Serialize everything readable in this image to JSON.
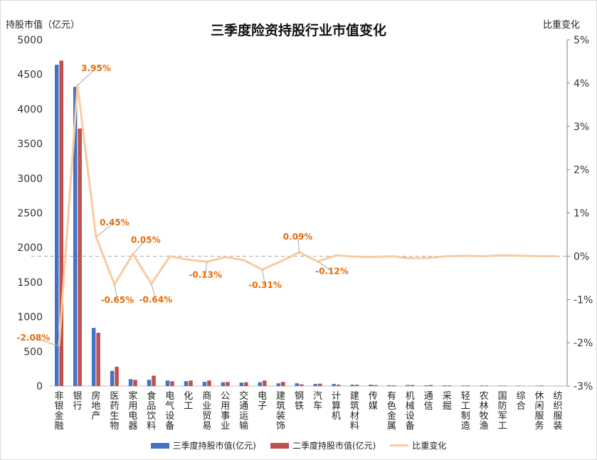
{
  "chart_data": {
    "type": "bar",
    "title": "三季度险资持股行业市值变化",
    "y_left_label": "持股市值（亿元）",
    "y_right_label": "比重变化",
    "ylim_left": [
      0,
      5000
    ],
    "y_left_ticks": [
      0,
      500,
      1000,
      1500,
      2000,
      2500,
      3000,
      3500,
      4000,
      4500,
      5000
    ],
    "ylim_right": [
      -3,
      5
    ],
    "y_right_ticks": [
      "-3%",
      "-2%",
      "-1%",
      "0%",
      "1%",
      "2%",
      "3%",
      "4%",
      "5%"
    ],
    "categories": [
      "非银金融",
      "银行",
      "房地产",
      "医药生物",
      "家用电器",
      "食品饮料",
      "电气设备",
      "化工",
      "商业贸易",
      "公用事业",
      "交通运输",
      "电子",
      "建筑装饰",
      "钢铁",
      "汽车",
      "计算机",
      "建筑材料",
      "传媒",
      "有色金属",
      "机械设备",
      "通信",
      "采掘",
      "轻工制造",
      "农林牧渔",
      "国防军工",
      "综合",
      "休闲服务",
      "纺织服装"
    ],
    "series": [
      {
        "name": "三季度持股市值(亿元)",
        "type": "bar",
        "color": "#4472c4",
        "values": [
          4640,
          4320,
          840,
          220,
          100,
          90,
          80,
          70,
          60,
          55,
          50,
          55,
          40,
          40,
          30,
          30,
          20,
          20,
          12,
          15,
          10,
          10,
          8,
          8,
          6,
          6,
          6,
          3
        ]
      },
      {
        "name": "二季度持股市值(亿元)",
        "type": "bar",
        "color": "#c0504d",
        "values": [
          4700,
          3720,
          770,
          280,
          90,
          150,
          70,
          80,
          80,
          60,
          55,
          80,
          60,
          25,
          35,
          20,
          20,
          15,
          10,
          15,
          15,
          10,
          8,
          8,
          6,
          3,
          8,
          3
        ]
      },
      {
        "name": "比重变化",
        "type": "line",
        "color": "#f8cba0",
        "values": [
          -2.08,
          3.95,
          0.45,
          -0.65,
          0.05,
          -0.64,
          0.0,
          -0.08,
          -0.13,
          -0.02,
          -0.09,
          -0.31,
          -0.12,
          0.09,
          -0.12,
          0.02,
          -0.01,
          -0.02,
          0.0,
          -0.05,
          -0.04,
          0.0,
          0.01,
          0.0,
          0.02,
          0.01,
          0.0,
          0.0
        ]
      }
    ],
    "annotations": [
      {
        "index": 0,
        "label": "-2.08%"
      },
      {
        "index": 1,
        "label": "3.95%"
      },
      {
        "index": 2,
        "label": "0.45%"
      },
      {
        "index": 3,
        "label": "-0.65%"
      },
      {
        "index": 4,
        "label": "0.05%"
      },
      {
        "index": 5,
        "label": "-0.64%"
      },
      {
        "index": 8,
        "label": "-0.13%"
      },
      {
        "index": 11,
        "label": "-0.31%"
      },
      {
        "index": 13,
        "label": "0.09%"
      },
      {
        "index": 14,
        "label": "-0.12%"
      }
    ],
    "annotation_color": "#e36c09",
    "legend_position": "bottom",
    "reference_line": "dashed at 0% of right axis"
  }
}
